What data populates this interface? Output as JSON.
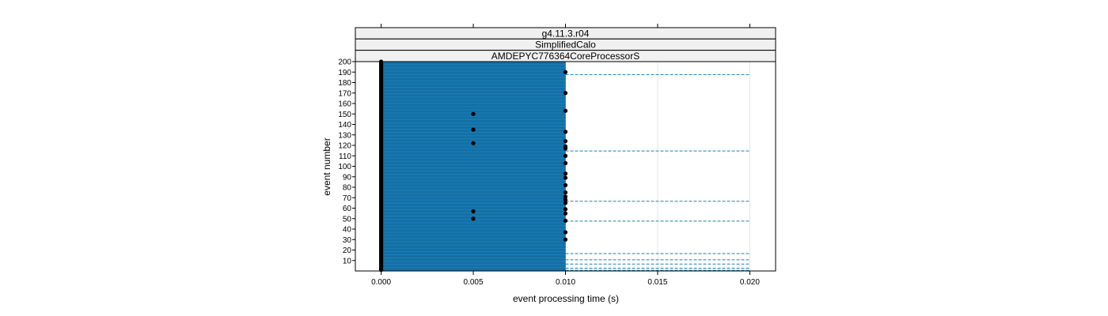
{
  "strips": [
    "g4.11.3.r04",
    "SimplifiedCalo",
    "AMDEPYC776364CoreProcessorS"
  ],
  "chart_data": {
    "type": "scatter",
    "xlabel": "event processing time (s)",
    "ylabel": "event number",
    "xlim": [
      -0.0014,
      0.0214
    ],
    "ylim": [
      0,
      200
    ],
    "x_ticks": [
      0.0,
      0.005,
      0.01,
      0.015,
      0.02
    ],
    "x_tick_labels": [
      "0.000",
      "0.005",
      "0.010",
      "0.015",
      "0.020"
    ],
    "y_ticks": [
      10,
      20,
      30,
      40,
      50,
      60,
      70,
      80,
      90,
      100,
      110,
      120,
      130,
      140,
      150,
      160,
      170,
      180,
      190,
      200
    ],
    "y_tick_labels": [
      "10",
      "20",
      "30",
      "40",
      "50",
      "60",
      "70",
      "80",
      "90",
      "100",
      "110",
      "120",
      "130",
      "140",
      "150",
      "160",
      "170",
      "180",
      "190",
      "200"
    ],
    "bar_fill_color": "#1a80bb",
    "dashed_line_color": "#1a80bb",
    "point_color": "#000000",
    "grid": true,
    "bar_band": {
      "x_start": 0.0,
      "x_end": 0.01,
      "y_start": 0,
      "y_end": 200
    },
    "dashed_lines": [
      {
        "event": 1,
        "x_end": 0.02
      },
      {
        "event": 3,
        "x_end": 0.02
      },
      {
        "event": 7,
        "x_end": 0.02
      },
      {
        "event": 11,
        "x_end": 0.02
      },
      {
        "event": 17,
        "x_end": 0.02
      },
      {
        "event": 48,
        "x_end": 0.02
      },
      {
        "event": 67,
        "x_end": 0.02
      },
      {
        "event": 115,
        "x_end": 0.02
      },
      {
        "event": 188,
        "x_end": 0.02
      }
    ],
    "points": [
      {
        "x": 0.005,
        "y": 150
      },
      {
        "x": 0.005,
        "y": 135
      },
      {
        "x": 0.005,
        "y": 122
      },
      {
        "x": 0.005,
        "y": 57
      },
      {
        "x": 0.005,
        "y": 50
      },
      {
        "x": 0.01,
        "y": 190
      },
      {
        "x": 0.01,
        "y": 170
      },
      {
        "x": 0.01,
        "y": 153
      },
      {
        "x": 0.01,
        "y": 133
      },
      {
        "x": 0.01,
        "y": 124
      },
      {
        "x": 0.01,
        "y": 119
      },
      {
        "x": 0.01,
        "y": 117
      },
      {
        "x": 0.01,
        "y": 110
      },
      {
        "x": 0.01,
        "y": 103
      },
      {
        "x": 0.01,
        "y": 93
      },
      {
        "x": 0.01,
        "y": 89
      },
      {
        "x": 0.01,
        "y": 82
      },
      {
        "x": 0.01,
        "y": 75
      },
      {
        "x": 0.01,
        "y": 71
      },
      {
        "x": 0.01,
        "y": 68
      },
      {
        "x": 0.01,
        "y": 65
      },
      {
        "x": 0.01,
        "y": 59
      },
      {
        "x": 0.01,
        "y": 55
      },
      {
        "x": 0.01,
        "y": 48
      },
      {
        "x": 0.01,
        "y": 37
      },
      {
        "x": 0.01,
        "y": 30
      }
    ],
    "zero_column": {
      "x": 0.0,
      "y_start": 1,
      "y_end": 200
    }
  }
}
